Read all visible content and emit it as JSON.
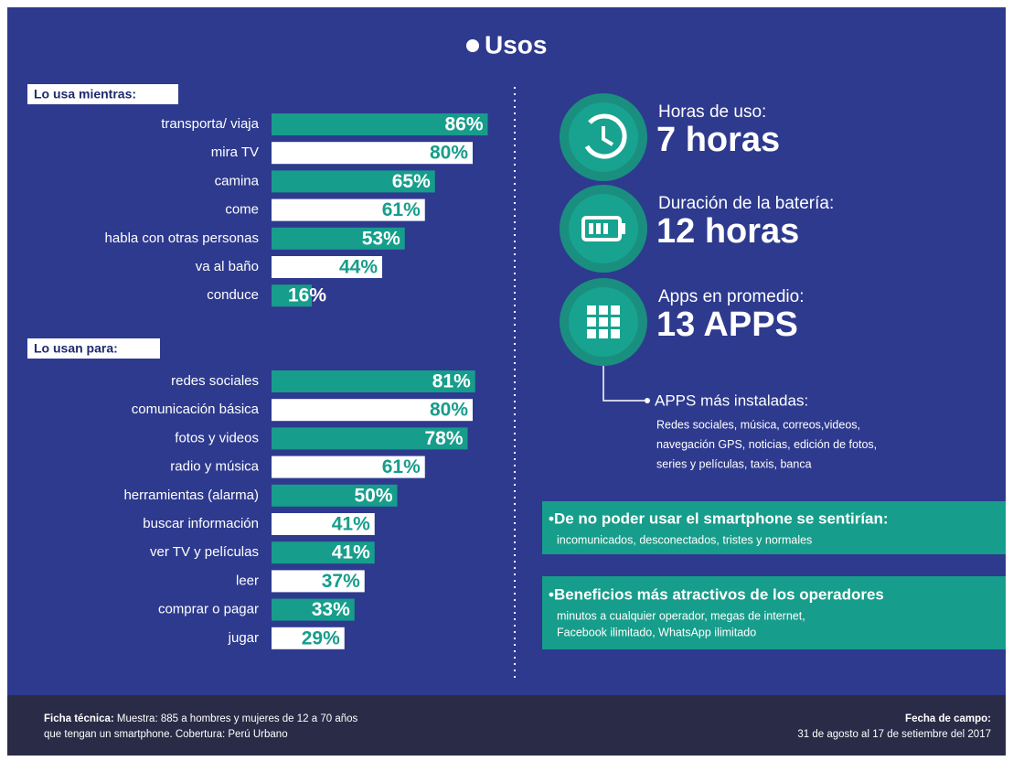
{
  "chart_data": [
    {
      "type": "bar",
      "orientation": "horizontal",
      "title": "Lo usa mientras:",
      "categories": [
        "transporta/ viaja",
        "mira TV",
        "camina",
        "come",
        "habla con otras personas",
        "va al baño",
        "conduce"
      ],
      "values": [
        86,
        80,
        65,
        61,
        53,
        44,
        16
      ],
      "value_labels": [
        "86%",
        "80%",
        "65%",
        "61%",
        "53%",
        "44%",
        "16%"
      ],
      "colors": [
        "#179d8b",
        "#ffffff"
      ]
    },
    {
      "type": "bar",
      "orientation": "horizontal",
      "title": "Lo usan para:",
      "categories": [
        "redes sociales",
        "comunicación básica",
        "fotos y videos",
        "radio y música",
        "herramientas (alarma)",
        "buscar información",
        "ver TV y películas",
        "leer",
        "comprar o pagar",
        "jugar"
      ],
      "values": [
        81,
        80,
        78,
        61,
        50,
        41,
        41,
        37,
        33,
        29
      ],
      "value_labels": [
        "81%",
        "80%",
        "78%",
        "61%",
        "50%",
        "41%",
        "41%",
        "37%",
        "33%",
        "29%"
      ],
      "colors": [
        "#179d8b",
        "#ffffff"
      ]
    }
  ],
  "header": {
    "title": "Usos"
  },
  "stats": [
    {
      "label": "Horas de uso:",
      "value": "7 horas"
    },
    {
      "label": "Duración de la batería:",
      "value": "12 horas"
    },
    {
      "label": "Apps en promedio:",
      "value": "13 APPS"
    }
  ],
  "apps_installed": {
    "title": "APPS más instaladas:",
    "lines": [
      "Redes sociales, música, correos,videos,",
      "navegación GPS, noticias, edición de fotos,",
      "series y películas, taxis, banca"
    ]
  },
  "boxes": [
    {
      "title": "•De no poder usar el smartphone se sentirían:",
      "lines": [
        "incomunicados, desconectados, tristes y normales"
      ]
    },
    {
      "title": "•Beneficios más atractivos de los operadores",
      "lines": [
        "minutos a cualquier operador, megas de internet,",
        "Facebook ilimitado, WhatsApp ilimitado"
      ]
    }
  ],
  "footer": {
    "left_bold": "Ficha técnica:",
    "left_line1": " Muestra: 885 a hombres y mujeres de 12 a 70 años",
    "left_line2": "que tengan un smartphone. Cobertura: Perú Urbano",
    "right_bold": "Fecha de campo:",
    "right_line": "31 de agosto al 17 de setiembre del 2017"
  }
}
